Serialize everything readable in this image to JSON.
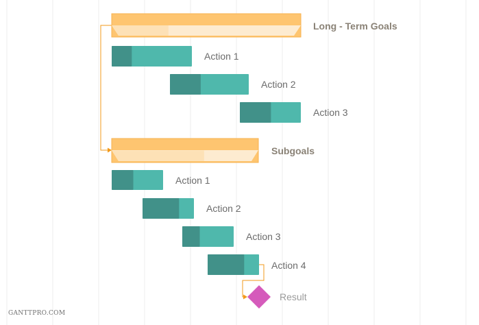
{
  "colors": {
    "grid": "#eeeeee",
    "group_fill": "#fec570",
    "group_stroke": "#f7b24f",
    "group_light": "#fdebd0",
    "group_progress": "#fde1b6",
    "task_dark": "#419189",
    "task_light": "#4fb8ac",
    "milestone": "#d55bbb",
    "connector": "#f29a1b"
  },
  "groups": [
    {
      "name": "Long - Term Goals",
      "progress": 0.3
    },
    {
      "name": "Subgoals",
      "progress": 0.63
    }
  ],
  "tasks": [
    {
      "name": "Action 1",
      "group": 0,
      "progress": 0.25
    },
    {
      "name": "Action 2",
      "group": 0,
      "progress": 0.39
    },
    {
      "name": "Action 3",
      "group": 0,
      "progress": 0.51
    },
    {
      "name": "Action 1",
      "group": 1,
      "progress": 0.42
    },
    {
      "name": "Action 2",
      "group": 1,
      "progress": 0.71
    },
    {
      "name": "Action 3",
      "group": 1,
      "progress": 0.34
    },
    {
      "name": "Action 4",
      "group": 1,
      "progress": 0.71
    }
  ],
  "milestone": {
    "name": "Result",
    "icon": "diamond-icon"
  },
  "watermark": "GANTTPRO.COM"
}
